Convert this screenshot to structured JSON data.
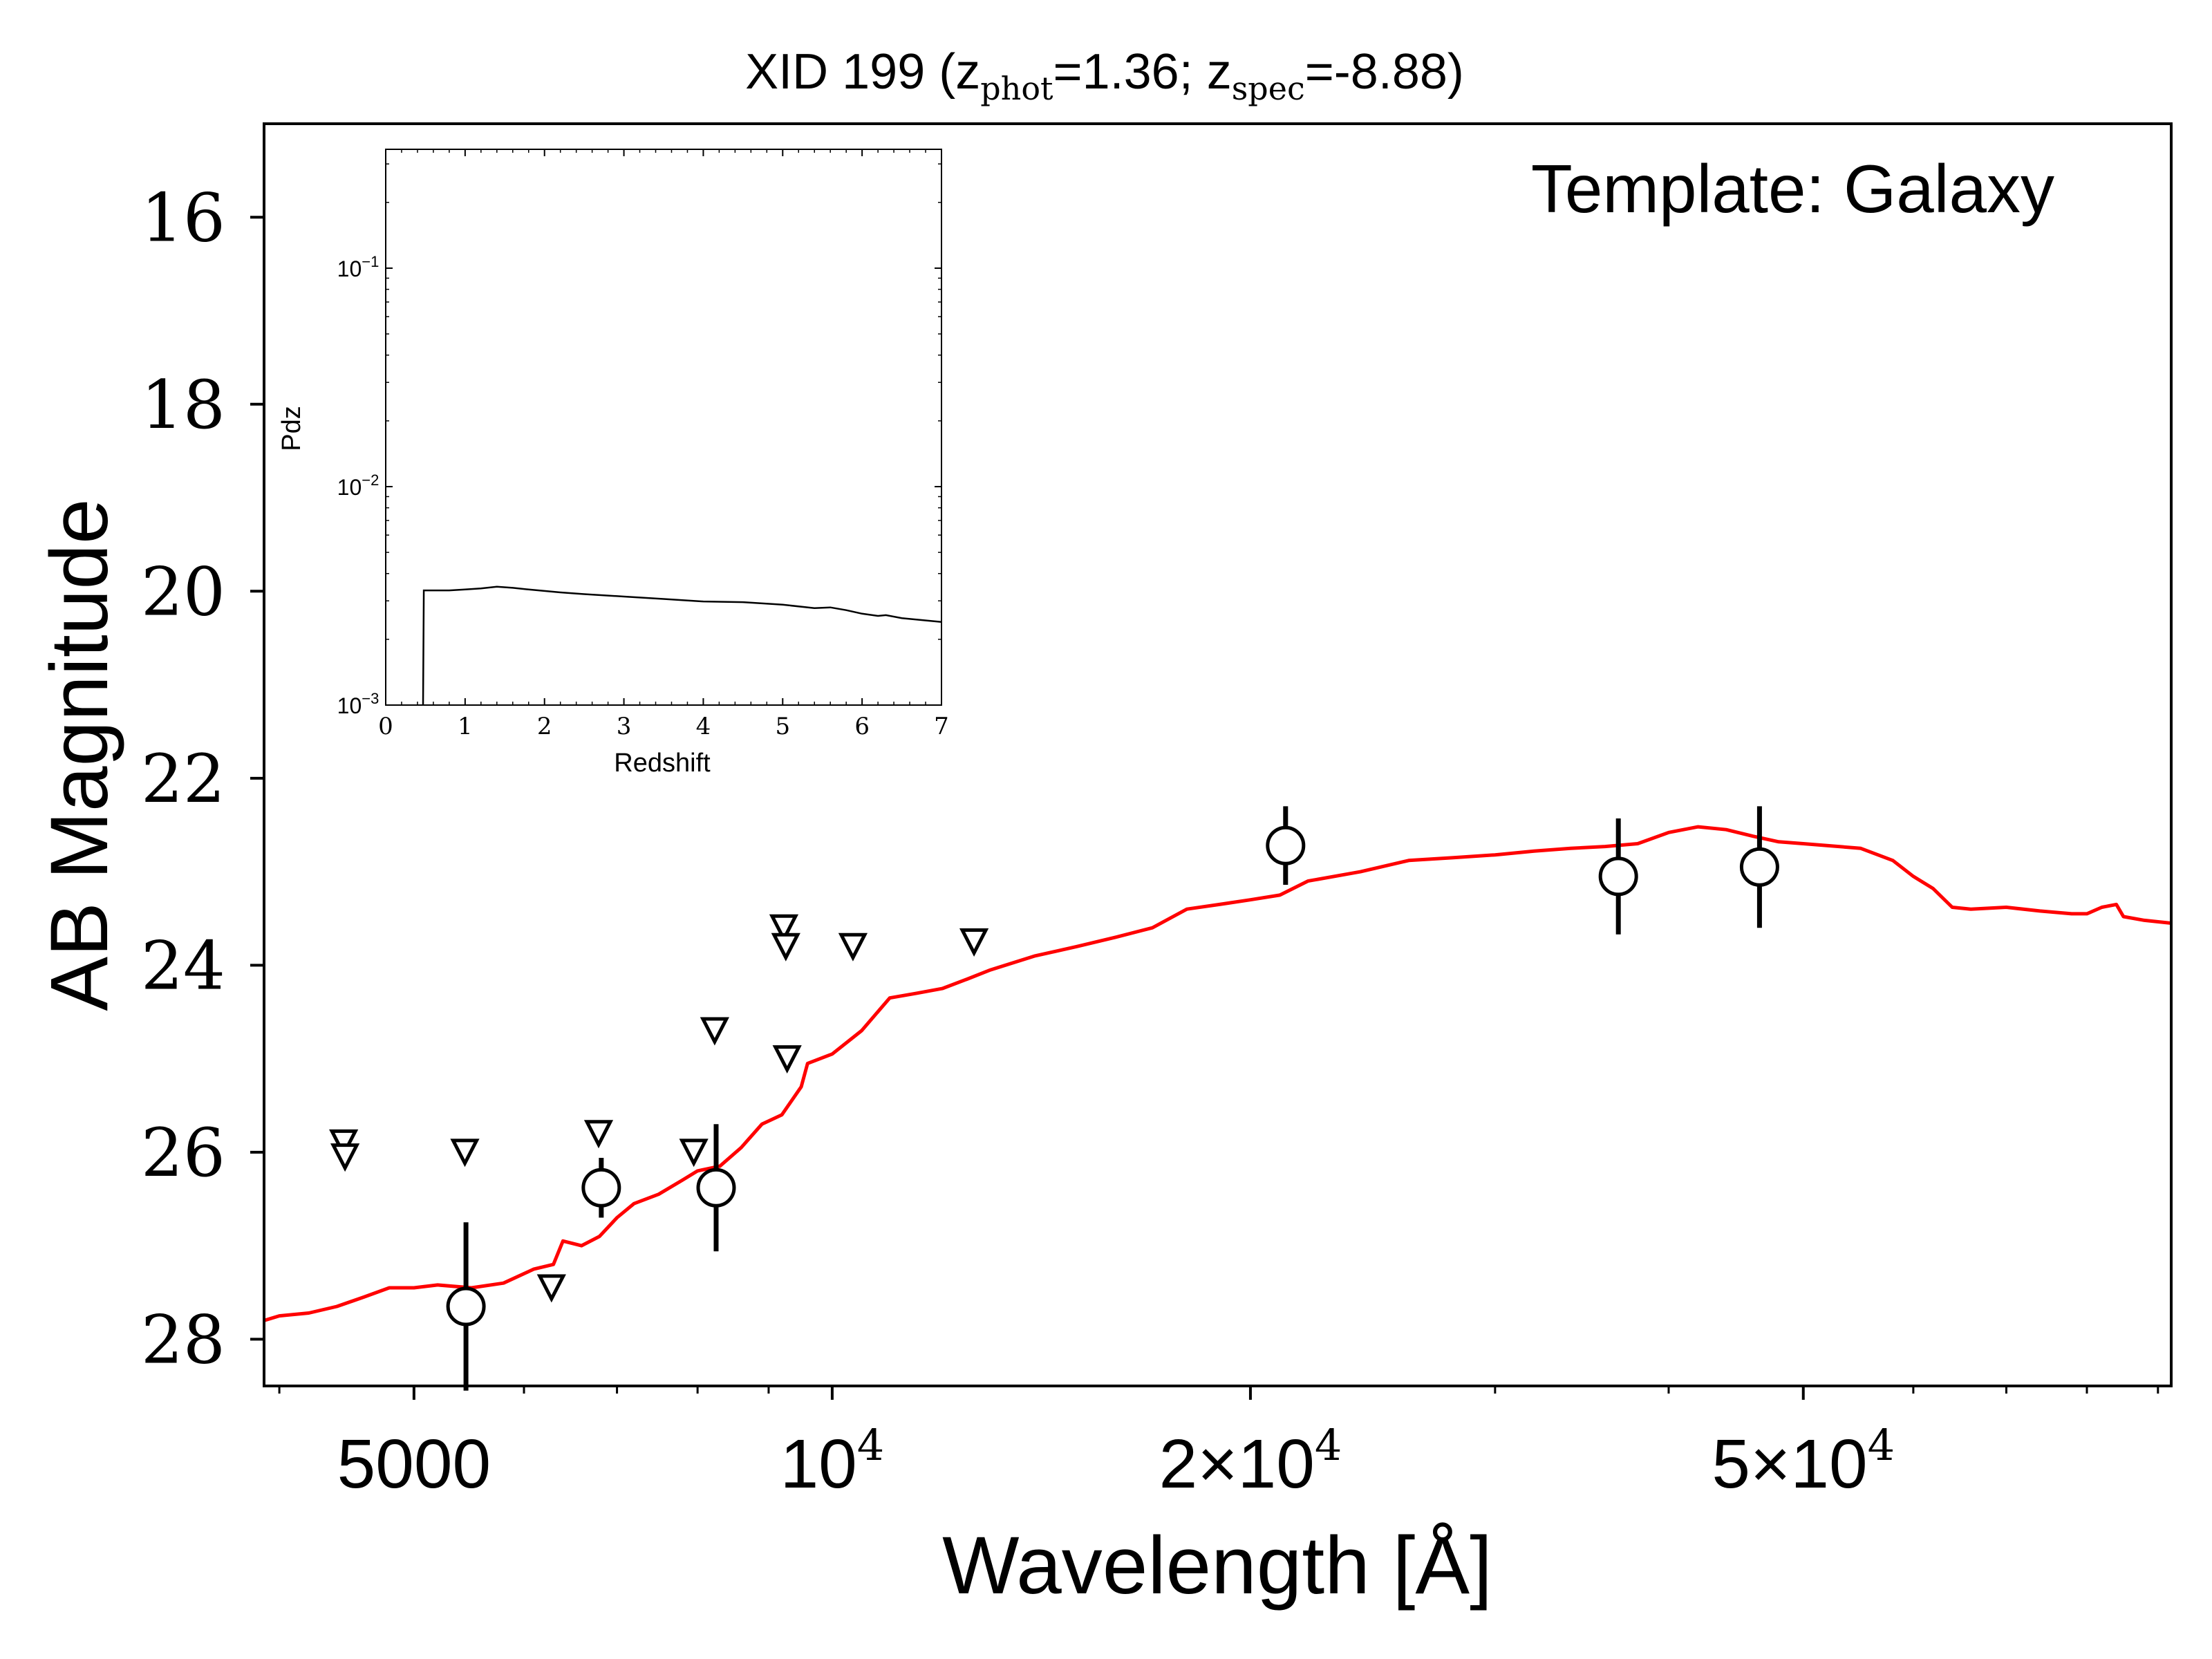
{
  "chart_data": [
    {
      "type": "scatter",
      "title_parts": {
        "prefix": "XID 199 (z",
        "phot_sub": "phot",
        "phot_val": "=1.36; z",
        "spec_sub": "spec",
        "spec_val": "=-8.88)"
      },
      "annotation": "Template: Galaxy",
      "xlabel": "Wavelength [Å]",
      "ylabel": "AB Magnitude",
      "xscale": "log",
      "xlim": [
        3900,
        92000
      ],
      "ylim": [
        28.5,
        15.0
      ],
      "y_inverted": true,
      "x_ticks": [
        {
          "value": 5000,
          "label": "5000",
          "kind": "plain"
        },
        {
          "value": 10000,
          "base": "10",
          "exp": "4",
          "kind": "power"
        },
        {
          "value": 20000,
          "base": "2×10",
          "exp": "4",
          "kind": "power"
        },
        {
          "value": 50000,
          "base": "5×10",
          "exp": "4",
          "kind": "power"
        }
      ],
      "x_minor_ticks": [
        4000,
        6000,
        7000,
        8000,
        9000,
        30000,
        40000,
        60000,
        70000,
        80000,
        90000
      ],
      "y_ticks": [
        16,
        18,
        20,
        22,
        24,
        26,
        28
      ],
      "y_tick_labels": [
        "16",
        "18",
        "20",
        "22",
        "24",
        "26",
        "28"
      ],
      "series": [
        {
          "name": "",
          "kind": "line",
          "color": "#ff0000",
          "points": [
            [
              3900,
              27.8
            ],
            [
              4000,
              27.75
            ],
            [
              4200,
              27.72
            ],
            [
              4400,
              27.65
            ],
            [
              4600,
              27.55
            ],
            [
              4800,
              27.45
            ],
            [
              5000,
              27.45
            ],
            [
              5200,
              27.42
            ],
            [
              5500,
              27.45
            ],
            [
              5800,
              27.4
            ],
            [
              6100,
              27.25
            ],
            [
              6300,
              27.2
            ],
            [
              6400,
              26.95
            ],
            [
              6600,
              27.0
            ],
            [
              6800,
              26.9
            ],
            [
              7000,
              26.7
            ],
            [
              7200,
              26.55
            ],
            [
              7500,
              26.45
            ],
            [
              7800,
              26.3
            ],
            [
              8000,
              26.2
            ],
            [
              8300,
              26.15
            ],
            [
              8600,
              25.95
            ],
            [
              8900,
              25.7
            ],
            [
              9200,
              25.6
            ],
            [
              9500,
              25.3
            ],
            [
              9600,
              25.05
            ],
            [
              10000,
              24.95
            ],
            [
              10500,
              24.7
            ],
            [
              11000,
              24.35
            ],
            [
              11500,
              24.3
            ],
            [
              12000,
              24.25
            ],
            [
              12500,
              24.15
            ],
            [
              13000,
              24.05
            ],
            [
              14000,
              23.9
            ],
            [
              15000,
              23.8
            ],
            [
              16000,
              23.7
            ],
            [
              17000,
              23.6
            ],
            [
              18000,
              23.4
            ],
            [
              19000,
              23.35
            ],
            [
              20000,
              23.3
            ],
            [
              21000,
              23.25
            ],
            [
              22000,
              23.1
            ],
            [
              24000,
              23.0
            ],
            [
              26000,
              22.88
            ],
            [
              28000,
              22.85
            ],
            [
              30000,
              22.82
            ],
            [
              32000,
              22.78
            ],
            [
              34000,
              22.75
            ],
            [
              36000,
              22.73
            ],
            [
              38000,
              22.7
            ],
            [
              40000,
              22.58
            ],
            [
              42000,
              22.52
            ],
            [
              44000,
              22.55
            ],
            [
              46000,
              22.62
            ],
            [
              48000,
              22.68
            ],
            [
              50000,
              22.7
            ],
            [
              52000,
              22.72
            ],
            [
              55000,
              22.75
            ],
            [
              58000,
              22.88
            ],
            [
              60000,
              23.05
            ],
            [
              62000,
              23.18
            ],
            [
              64000,
              23.38
            ],
            [
              66000,
              23.4
            ],
            [
              70000,
              23.38
            ],
            [
              74000,
              23.42
            ],
            [
              78000,
              23.45
            ],
            [
              80000,
              23.45
            ],
            [
              82000,
              23.38
            ],
            [
              84000,
              23.35
            ],
            [
              85000,
              23.48
            ],
            [
              88000,
              23.52
            ],
            [
              92000,
              23.55
            ]
          ]
        },
        {
          "name": "",
          "kind": "detections",
          "points": [
            {
              "x": 5450,
              "y": 27.65,
              "err": 0.9
            },
            {
              "x": 6820,
              "y": 26.38,
              "err": 0.32
            },
            {
              "x": 8250,
              "y": 26.38,
              "err": 0.68
            },
            {
              "x": 21200,
              "y": 22.72,
              "err": 0.42
            },
            {
              "x": 36800,
              "y": 23.05,
              "err": 0.62
            },
            {
              "x": 46500,
              "y": 22.95,
              "err": 0.65
            }
          ]
        },
        {
          "name": "",
          "kind": "upper_limits",
          "points": [
            {
              "x": 4450,
              "y": 25.9
            },
            {
              "x": 4460,
              "y": 26.05
            },
            {
              "x": 5440,
              "y": 26.0
            },
            {
              "x": 6280,
              "y": 27.45
            },
            {
              "x": 6790,
              "y": 25.8
            },
            {
              "x": 7950,
              "y": 26.0
            },
            {
              "x": 8230,
              "y": 24.7
            },
            {
              "x": 9230,
              "y": 23.6
            },
            {
              "x": 9260,
              "y": 23.8
            },
            {
              "x": 9280,
              "y": 25.0
            },
            {
              "x": 10350,
              "y": 23.8
            },
            {
              "x": 12650,
              "y": 23.75
            }
          ]
        }
      ]
    },
    {
      "type": "line",
      "name": "inset",
      "xlabel": "Redshift",
      "ylabel": "Pdz",
      "xlim": [
        0,
        7
      ],
      "ylim": [
        0.001,
        0.35
      ],
      "yscale": "log",
      "x_ticks": [
        0,
        1,
        2,
        3,
        4,
        5,
        6,
        7
      ],
      "x_tick_labels": [
        "0",
        "1",
        "2",
        "3",
        "4",
        "5",
        "6",
        "7"
      ],
      "y_ticks": [
        {
          "value": 0.001,
          "base": "10",
          "exp": "−3"
        },
        {
          "value": 0.01,
          "base": "10",
          "exp": "−2"
        },
        {
          "value": 0.1,
          "base": "10",
          "exp": "−1"
        }
      ],
      "series": [
        {
          "name": "",
          "color": "#000000",
          "points": [
            [
              0.47,
              0.00098
            ],
            [
              0.48,
              0.00335
            ],
            [
              0.8,
              0.00335
            ],
            [
              1.0,
              0.00338
            ],
            [
              1.2,
              0.00342
            ],
            [
              1.4,
              0.00348
            ],
            [
              1.6,
              0.00344
            ],
            [
              1.8,
              0.00338
            ],
            [
              2.0,
              0.00333
            ],
            [
              2.2,
              0.00328
            ],
            [
              2.5,
              0.00322
            ],
            [
              3.0,
              0.00314
            ],
            [
              3.5,
              0.00306
            ],
            [
              4.0,
              0.00298
            ],
            [
              4.5,
              0.00296
            ],
            [
              5.0,
              0.00288
            ],
            [
              5.4,
              0.00278
            ],
            [
              5.6,
              0.0028
            ],
            [
              5.8,
              0.00272
            ],
            [
              6.0,
              0.00262
            ],
            [
              6.2,
              0.00256
            ],
            [
              6.3,
              0.00258
            ],
            [
              6.5,
              0.0025
            ],
            [
              7.0,
              0.0024
            ]
          ]
        }
      ]
    }
  ]
}
